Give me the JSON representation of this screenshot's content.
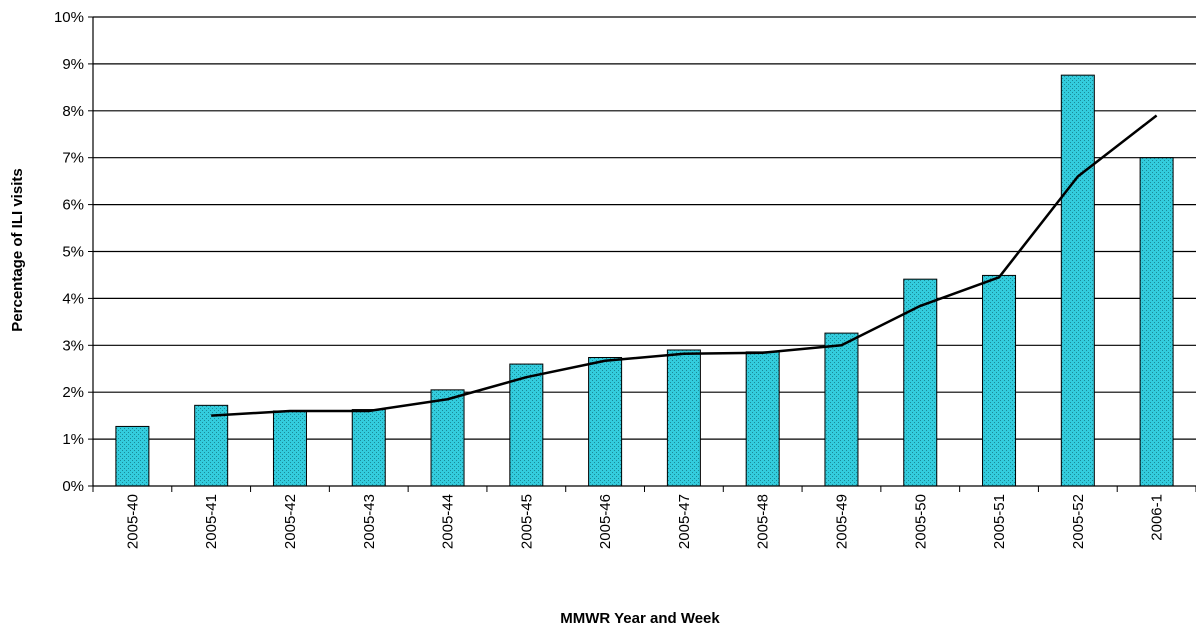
{
  "chart_data": {
    "type": "bar",
    "title": "",
    "xlabel": "MMWR Year and Week",
    "ylabel": "Percentage of ILI visits",
    "ylim": [
      0,
      10
    ],
    "yticks": [
      0,
      1,
      2,
      3,
      4,
      5,
      6,
      7,
      8,
      9,
      10
    ],
    "ytick_labels": [
      "0%",
      "1%",
      "2%",
      "3%",
      "4%",
      "5%",
      "6%",
      "7%",
      "8%",
      "9%",
      "10%"
    ],
    "grid": true,
    "categories": [
      "2005-40",
      "2005-41",
      "2005-42",
      "2005-43",
      "2005-44",
      "2005-45",
      "2005-46",
      "2005-47",
      "2005-48",
      "2005-49",
      "2005-50",
      "2005-51",
      "2005-52",
      "2006-1"
    ],
    "series": [
      {
        "type": "bar",
        "values": [
          1.27,
          1.72,
          1.6,
          1.63,
          2.05,
          2.6,
          2.74,
          2.9,
          2.86,
          3.26,
          4.41,
          4.49,
          8.76,
          7.0
        ],
        "color": "#33ccdd"
      },
      {
        "type": "line",
        "values": [
          null,
          1.5,
          1.6,
          1.6,
          1.85,
          2.32,
          2.67,
          2.82,
          2.84,
          3.0,
          3.84,
          4.45,
          6.6,
          7.9
        ],
        "color": "#000000"
      }
    ]
  }
}
